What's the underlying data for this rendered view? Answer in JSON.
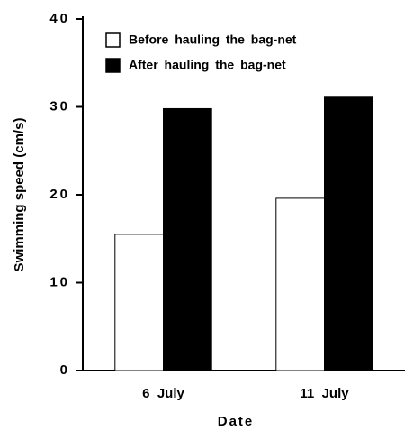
{
  "chart_data": {
    "type": "bar",
    "categories": [
      "6  July",
      "11  July"
    ],
    "series": [
      {
        "name": "Before hauling the bag-net",
        "color": "#ffffff",
        "values": [
          15.5,
          19.6
        ]
      },
      {
        "name": "After hauling the bag-net",
        "color": "#000000",
        "values": [
          29.8,
          31.1
        ]
      }
    ],
    "x_label": "Date",
    "y_label": "Swimming  speed  (cm/s)",
    "ylim": [
      0,
      40
    ],
    "yticks": [
      0,
      10,
      20,
      30,
      40
    ],
    "legend": "top-left",
    "grid": false
  }
}
